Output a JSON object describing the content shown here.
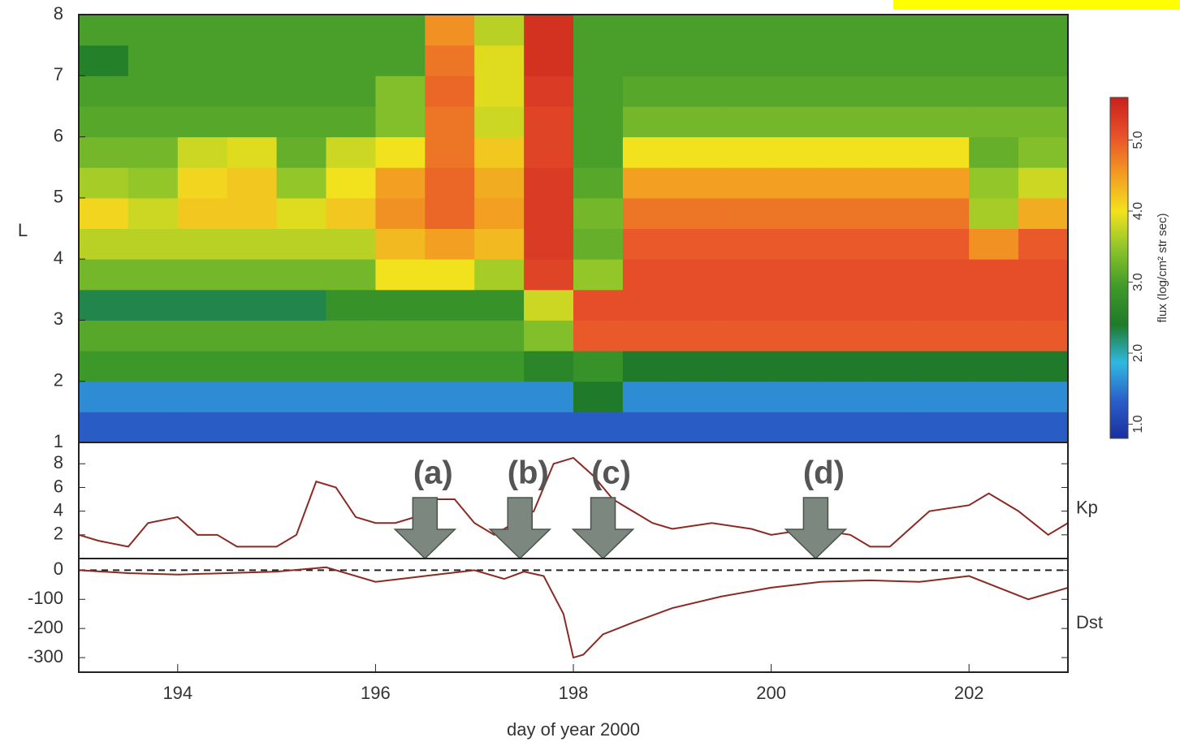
{
  "chart_data": [
    {
      "type": "heatmap",
      "ylabel": "L",
      "xlim": [
        193,
        203
      ],
      "ylim": [
        1,
        8
      ],
      "yticks": [
        1,
        2,
        3,
        4,
        5,
        6,
        7,
        8
      ],
      "x_edges": [
        193,
        193.5,
        194,
        194.5,
        195,
        195.5,
        196,
        196.5,
        197,
        197.5,
        198,
        198.5,
        199,
        199.5,
        200,
        200.5,
        201,
        201.5,
        202,
        202.5,
        203
      ],
      "y_edges": [
        1,
        1.5,
        2,
        2.5,
        3,
        3.5,
        4,
        4.5,
        5,
        5.5,
        6,
        6.5,
        7,
        7.5,
        8
      ],
      "z": [
        [
          1.3,
          1.3,
          1.3,
          1.3,
          1.3,
          1.3,
          1.3,
          1.3,
          1.3,
          1.3,
          1.3,
          1.3,
          1.3,
          1.3,
          1.3,
          1.3,
          1.3,
          1.3,
          1.3,
          1.3
        ],
        [
          1.6,
          1.6,
          1.6,
          1.6,
          1.6,
          1.6,
          1.6,
          1.6,
          1.6,
          1.6,
          2.4,
          1.6,
          1.6,
          1.6,
          1.6,
          1.6,
          1.6,
          1.6,
          1.6,
          1.6
        ],
        [
          2.9,
          2.9,
          2.9,
          2.9,
          2.9,
          2.9,
          2.9,
          2.9,
          2.9,
          2.6,
          2.8,
          2.4,
          2.4,
          2.4,
          2.4,
          2.4,
          2.4,
          2.4,
          2.4,
          2.4
        ],
        [
          3.1,
          3.1,
          3.1,
          3.1,
          3.1,
          3.1,
          3.1,
          3.1,
          3.1,
          3.4,
          5.0,
          5.0,
          5.0,
          5.0,
          5.0,
          5.0,
          5.0,
          5.0,
          5.0,
          5.0
        ],
        [
          2.3,
          2.3,
          2.3,
          2.3,
          2.3,
          2.8,
          2.8,
          2.8,
          2.8,
          3.8,
          5.1,
          5.1,
          5.1,
          5.1,
          5.1,
          5.1,
          5.1,
          5.1,
          5.1,
          5.1
        ],
        [
          3.3,
          3.3,
          3.3,
          3.3,
          3.3,
          3.3,
          4.0,
          4.0,
          3.6,
          5.2,
          3.5,
          5.1,
          5.1,
          5.1,
          5.1,
          5.1,
          5.1,
          5.1,
          5.1,
          5.1
        ],
        [
          3.7,
          3.7,
          3.7,
          3.7,
          3.7,
          3.7,
          4.3,
          4.5,
          4.3,
          5.3,
          3.2,
          5.0,
          5.0,
          5.0,
          5.0,
          5.0,
          5.0,
          5.0,
          4.6,
          5.0
        ],
        [
          4.1,
          3.8,
          4.2,
          4.2,
          3.9,
          4.2,
          4.6,
          4.9,
          4.5,
          5.3,
          3.3,
          4.8,
          4.8,
          4.8,
          4.8,
          4.8,
          4.8,
          4.8,
          3.6,
          4.4
        ],
        [
          3.6,
          3.5,
          4.1,
          4.2,
          3.5,
          4.0,
          4.5,
          4.9,
          4.4,
          5.3,
          3.1,
          4.5,
          4.5,
          4.5,
          4.5,
          4.5,
          4.5,
          4.5,
          3.5,
          3.8
        ],
        [
          3.3,
          3.3,
          3.8,
          3.9,
          3.2,
          3.8,
          4.0,
          4.8,
          4.2,
          5.2,
          3.0,
          4.0,
          4.0,
          4.0,
          4.0,
          4.0,
          4.0,
          4.0,
          3.2,
          3.4
        ],
        [
          3.1,
          3.1,
          3.1,
          3.1,
          3.1,
          3.1,
          3.4,
          4.8,
          3.8,
          5.2,
          3.0,
          3.3,
          3.3,
          3.3,
          3.3,
          3.3,
          3.3,
          3.3,
          3.3,
          3.3
        ],
        [
          3.0,
          3.0,
          3.0,
          3.0,
          3.0,
          3.0,
          3.4,
          4.9,
          3.9,
          5.3,
          3.0,
          3.1,
          3.1,
          3.1,
          3.1,
          3.1,
          3.1,
          3.1,
          3.1,
          3.1
        ],
        [
          2.5,
          3.0,
          3.0,
          3.0,
          3.0,
          3.0,
          3.0,
          4.8,
          3.9,
          5.4,
          3.0,
          3.0,
          3.0,
          3.0,
          3.0,
          3.0,
          3.0,
          3.0,
          3.0,
          3.0
        ],
        [
          3.0,
          3.0,
          3.0,
          3.0,
          3.0,
          3.0,
          3.0,
          4.6,
          3.7,
          5.4,
          3.0,
          3.0,
          3.0,
          3.0,
          3.0,
          3.0,
          3.0,
          3.0,
          3.0,
          3.0
        ]
      ],
      "colorbar": {
        "label": "flux (log/cm² str sec)",
        "clim": [
          0.8,
          5.6
        ],
        "ticks": [
          {
            "value": 1,
            "label": "1.0"
          },
          {
            "value": 2,
            "label": "2.0"
          },
          {
            "value": 3,
            "label": "3.0"
          },
          {
            "value": 4,
            "label": "4.0"
          },
          {
            "value": 5,
            "label": "5.0"
          }
        ],
        "colors": [
          "#1a2f9e",
          "#2a5fc8",
          "#30b8e0",
          "#1f7a2a",
          "#3f9a2a",
          "#8cc42a",
          "#f2e21e",
          "#f29a22",
          "#e8502a",
          "#c8201c"
        ]
      }
    },
    {
      "type": "line",
      "ylabel": "Kp",
      "xlim": [
        193,
        203
      ],
      "ylim": [
        0,
        9.8
      ],
      "yticks": [
        2,
        4,
        6,
        8
      ],
      "color": "#8a2a22",
      "x": [
        193,
        193.2,
        193.5,
        193.7,
        194.0,
        194.2,
        194.4,
        194.6,
        194.8,
        195.0,
        195.2,
        195.4,
        195.6,
        195.8,
        196.0,
        196.2,
        196.4,
        196.6,
        196.8,
        197.0,
        197.2,
        197.4,
        197.6,
        197.8,
        198.0,
        198.2,
        198.4,
        198.6,
        198.8,
        199.0,
        199.4,
        199.8,
        200.0,
        200.4,
        200.8,
        201.0,
        201.2,
        201.4,
        201.6,
        202.0,
        202.2,
        202.5,
        202.8,
        203
      ],
      "values": [
        2,
        1.5,
        1,
        3,
        3.5,
        2,
        2,
        1,
        1,
        1,
        2,
        6.5,
        6,
        3.5,
        3,
        3,
        3.5,
        5,
        5,
        3,
        2,
        3,
        4,
        8,
        8.5,
        7,
        5,
        4,
        3,
        2.5,
        3,
        2.5,
        2,
        2.5,
        2,
        1,
        1,
        2.5,
        4,
        4.5,
        5.5,
        4,
        2,
        3
      ],
      "arrows": [
        {
          "label": "(a)",
          "x": 196.5
        },
        {
          "label": "(b)",
          "x": 197.46
        },
        {
          "label": "(c)",
          "x": 198.3
        },
        {
          "label": "(d)",
          "x": 200.45
        }
      ]
    },
    {
      "type": "line",
      "ylabel": "Dst",
      "xlabel": "day of year 2000",
      "xlim": [
        193,
        203
      ],
      "ylim": [
        -350,
        40
      ],
      "yticks": [
        0,
        -100,
        -200,
        -300
      ],
      "xticks": [
        194,
        196,
        198,
        200,
        202
      ],
      "reference_line": 0,
      "color": "#8a2a22",
      "x": [
        193,
        193.5,
        194,
        194.5,
        195,
        195.5,
        196,
        196.5,
        197,
        197.3,
        197.5,
        197.7,
        197.9,
        198.0,
        198.1,
        198.3,
        198.6,
        199,
        199.5,
        200,
        200.5,
        201,
        201.5,
        202,
        202.3,
        202.6,
        203
      ],
      "values": [
        0,
        -10,
        -15,
        -10,
        -5,
        10,
        -40,
        -20,
        0,
        -30,
        -5,
        -20,
        -150,
        -300,
        -290,
        -220,
        -180,
        -130,
        -90,
        -60,
        -40,
        -35,
        -40,
        -20,
        -60,
        -100,
        -60
      ]
    }
  ]
}
